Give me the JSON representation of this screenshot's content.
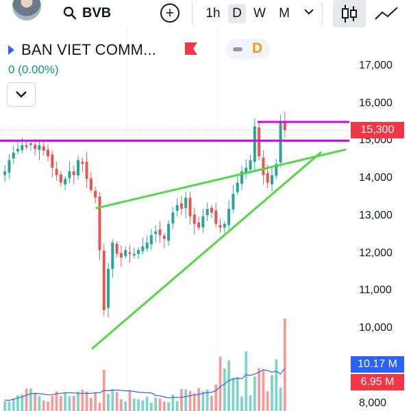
{
  "header": {
    "symbol": "BVB",
    "intervals": [
      {
        "label": "1h",
        "active": false
      },
      {
        "label": "D",
        "active": true
      },
      {
        "label": "W",
        "active": false
      },
      {
        "label": "M",
        "active": false
      }
    ],
    "icons": {
      "search": "search-icon",
      "add": "plus-circle-icon",
      "caret": "chevron-down-icon",
      "candles": "candles-icon",
      "line": "line-chart-icon",
      "avatar": "avatar"
    }
  },
  "symbol_info": {
    "name": "BAN VIET COMM...",
    "change": "0 (0.00%)",
    "flag_color": "#f23645",
    "pill_label": "D"
  },
  "price_axis": {
    "ticks": [
      "17,000",
      "16,000",
      "15,000",
      "14,000",
      "13,000",
      "12,000",
      "11,000",
      "10,000",
      "8,000"
    ],
    "last_price": "15,300",
    "volume_avg": "10.17 M",
    "volume_last": "6.95 M",
    "colors": {
      "up": "#26a69a",
      "down": "#ef5350",
      "magenta": "#d500f9",
      "trend": "#4cdb3e",
      "blue_badge": "#2962ff",
      "red_badge": "#f23645"
    }
  },
  "chart_data": {
    "type": "candlestick",
    "ylim": [
      9200,
      17400
    ],
    "price_levels": {
      "resistance_upper": 15520,
      "resistance_lower": 15020,
      "dotted_reference": 15300
    },
    "trendlines": [
      {
        "name": "",
        "from": [
          0.235,
          13220
        ],
        "to": [
          0.84,
          14780
        ]
      },
      {
        "name": "",
        "from": [
          0.225,
          9480
        ],
        "to": [
          0.78,
          14700
        ]
      }
    ],
    "close_series": [
      14200,
      14500,
      14700,
      14800,
      14900,
      14850,
      14950,
      14800,
      14900,
      14750,
      14600,
      14300,
      14100,
      13900,
      14000,
      14200,
      14100,
      14500,
      14400,
      14000,
      13700,
      13500,
      12100,
      10500,
      11600,
      12300,
      12000,
      11900,
      12100,
      12000,
      12000,
      12100,
      12200,
      12300,
      12500,
      12600,
      12500,
      12400,
      12800,
      13100,
      13300,
      13200,
      13500,
      13000,
      12800,
      12700,
      13000,
      13200,
      13100,
      12800,
      12700,
      12800,
      13200,
      13600,
      13900,
      14200,
      14300,
      14500,
      15400,
      14600,
      14100,
      13900,
      14100,
      14400,
      15500,
      15300
    ]
  }
}
